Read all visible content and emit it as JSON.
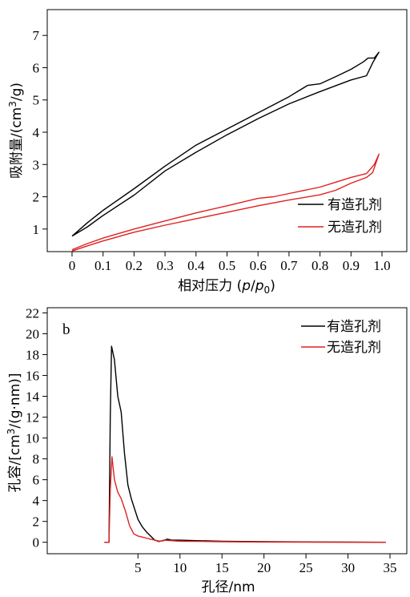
{
  "chart_data": [
    {
      "type": "line",
      "panel_label": "",
      "title": "",
      "xlabel": "相对压力 (p/p0)",
      "xlabel_parts": {
        "prefix": "相对压力 (",
        "p": "p",
        "slash": "/",
        "p0": "p",
        "sub": "0",
        "suffix": ")"
      },
      "ylabel": "吸附量/(cm³/g)",
      "ylabel_parts": {
        "prefix": "吸附量/(cm",
        "sup": "3",
        "suffix": "/g)"
      },
      "xlim": [
        -0.08,
        1.08
      ],
      "ylim": [
        0.3,
        7.8
      ],
      "xticks": [
        0,
        0.1,
        0.2,
        0.3,
        0.4,
        0.5,
        0.6,
        0.7,
        0.8,
        0.9,
        1.0
      ],
      "xtick_labels": [
        "0",
        "0.1",
        "0.2",
        "0.3",
        "0.4",
        "0.5",
        "0.6",
        "0.7",
        "0.8",
        "0.9",
        "1.0"
      ],
      "yticks": [
        1,
        2,
        3,
        4,
        5,
        6,
        7
      ],
      "ytick_labels": [
        "1",
        "2",
        "3",
        "4",
        "5",
        "6",
        "7"
      ],
      "legend_position": "lower-right",
      "series": [
        {
          "name": "有造孔剂",
          "color": "#000000",
          "points": [
            [
              0.0,
              0.78
            ],
            [
              0.05,
              1.07
            ],
            [
              0.1,
              1.42
            ],
            [
              0.2,
              2.05
            ],
            [
              0.3,
              2.8
            ],
            [
              0.4,
              3.38
            ],
            [
              0.5,
              3.92
            ],
            [
              0.6,
              4.42
            ],
            [
              0.7,
              4.88
            ],
            [
              0.8,
              5.26
            ],
            [
              0.9,
              5.62
            ],
            [
              0.95,
              5.75
            ],
            [
              0.97,
              6.15
            ],
            [
              0.985,
              6.4
            ],
            [
              0.99,
              6.48
            ],
            [
              0.975,
              6.3
            ],
            [
              0.955,
              6.3
            ],
            [
              0.94,
              6.18
            ],
            [
              0.9,
              5.95
            ],
            [
              0.85,
              5.72
            ],
            [
              0.8,
              5.5
            ],
            [
              0.76,
              5.45
            ],
            [
              0.7,
              5.1
            ],
            [
              0.6,
              4.6
            ],
            [
              0.5,
              4.1
            ],
            [
              0.4,
              3.6
            ],
            [
              0.3,
              2.95
            ],
            [
              0.2,
              2.25
            ],
            [
              0.1,
              1.58
            ],
            [
              0.05,
              1.2
            ],
            [
              0.0,
              0.78
            ]
          ]
        },
        {
          "name": "无造孔剂",
          "color": "#e02020",
          "points": [
            [
              0.0,
              0.32
            ],
            [
              0.05,
              0.48
            ],
            [
              0.1,
              0.63
            ],
            [
              0.2,
              0.9
            ],
            [
              0.3,
              1.12
            ],
            [
              0.4,
              1.32
            ],
            [
              0.5,
              1.52
            ],
            [
              0.6,
              1.72
            ],
            [
              0.7,
              1.9
            ],
            [
              0.8,
              2.06
            ],
            [
              0.85,
              2.2
            ],
            [
              0.9,
              2.42
            ],
            [
              0.95,
              2.6
            ],
            [
              0.97,
              2.75
            ],
            [
              0.99,
              3.32
            ],
            [
              0.975,
              3.0
            ],
            [
              0.95,
              2.72
            ],
            [
              0.92,
              2.65
            ],
            [
              0.9,
              2.6
            ],
            [
              0.85,
              2.45
            ],
            [
              0.8,
              2.3
            ],
            [
              0.7,
              2.1
            ],
            [
              0.65,
              2.0
            ],
            [
              0.6,
              1.95
            ],
            [
              0.5,
              1.72
            ],
            [
              0.4,
              1.5
            ],
            [
              0.3,
              1.25
            ],
            [
              0.2,
              1.0
            ],
            [
              0.1,
              0.72
            ],
            [
              0.05,
              0.55
            ],
            [
              0.0,
              0.36
            ]
          ]
        }
      ]
    },
    {
      "type": "line",
      "panel_label": "b",
      "title": "",
      "xlabel": "孔径/nm",
      "ylabel": "孔容/[cm³/(g·nm)]",
      "ylabel_parts": {
        "prefix": "孔容/[cm",
        "sup": "3",
        "suffix": "/(g·nm)]"
      },
      "xlim": [
        -5.8,
        37
      ],
      "ylim": [
        -1.1,
        22.5
      ],
      "xticks": [
        5,
        10,
        15,
        20,
        25,
        30,
        35
      ],
      "xtick_labels": [
        "5",
        "10",
        "15",
        "20",
        "25",
        "30",
        "35"
      ],
      "yticks": [
        0,
        2,
        4,
        6,
        8,
        10,
        12,
        14,
        16,
        18,
        20,
        22
      ],
      "ytick_labels": [
        "0",
        "2",
        "4",
        "6",
        "8",
        "10",
        "12",
        "14",
        "16",
        "18",
        "20",
        "22"
      ],
      "legend_position": "top-right",
      "series": [
        {
          "name": "有造孔剂",
          "color": "#000000",
          "points": [
            [
              1.0,
              0.0
            ],
            [
              1.55,
              0.0
            ],
            [
              1.7,
              12.0
            ],
            [
              1.85,
              18.8
            ],
            [
              2.2,
              17.5
            ],
            [
              2.6,
              14.0
            ],
            [
              3.0,
              12.5
            ],
            [
              3.4,
              8.5
            ],
            [
              3.8,
              5.5
            ],
            [
              4.2,
              4.2
            ],
            [
              4.6,
              3.2
            ],
            [
              5.0,
              2.2
            ],
            [
              5.5,
              1.5
            ],
            [
              6.0,
              1.0
            ],
            [
              6.5,
              0.6
            ],
            [
              7.0,
              0.2
            ],
            [
              7.5,
              0.1
            ],
            [
              8.0,
              0.15
            ],
            [
              8.5,
              0.3
            ],
            [
              9.0,
              0.2
            ],
            [
              10.0,
              0.2
            ],
            [
              12.0,
              0.15
            ],
            [
              15.0,
              0.1
            ],
            [
              20.0,
              0.05
            ],
            [
              25.0,
              0.03
            ],
            [
              30.0,
              0.02
            ],
            [
              34.5,
              0.0
            ]
          ]
        },
        {
          "name": "无造孔剂",
          "color": "#e02020",
          "points": [
            [
              1.0,
              0.0
            ],
            [
              1.55,
              0.0
            ],
            [
              1.7,
              5.0
            ],
            [
              1.9,
              8.2
            ],
            [
              2.2,
              6.0
            ],
            [
              2.6,
              4.8
            ],
            [
              3.0,
              4.2
            ],
            [
              3.5,
              3.0
            ],
            [
              4.0,
              1.6
            ],
            [
              4.5,
              0.8
            ],
            [
              5.0,
              0.6
            ],
            [
              5.5,
              0.5
            ],
            [
              6.0,
              0.4
            ],
            [
              6.5,
              0.3
            ],
            [
              7.0,
              0.2
            ],
            [
              7.5,
              0.05
            ],
            [
              8.0,
              0.2
            ],
            [
              9.0,
              0.15
            ],
            [
              10.0,
              0.1
            ],
            [
              12.0,
              0.08
            ],
            [
              15.0,
              0.05
            ],
            [
              20.0,
              0.02
            ],
            [
              25.0,
              0.01
            ],
            [
              30.0,
              0.0
            ],
            [
              34.5,
              0.0
            ]
          ]
        }
      ]
    }
  ]
}
